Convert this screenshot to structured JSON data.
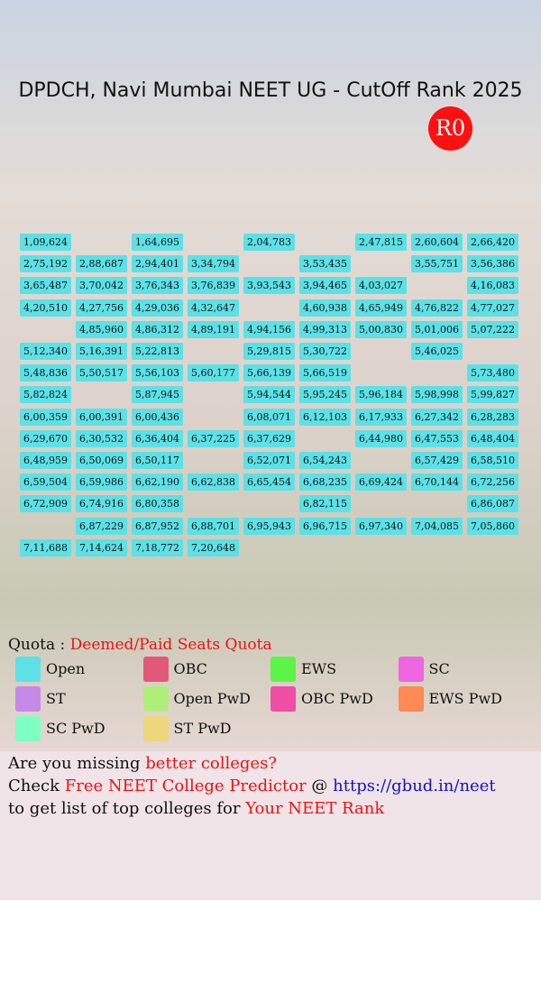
{
  "header": {
    "title": "DPDCH, Navi Mumbai NEET UG - CutOff Rank 2025",
    "round": "R0"
  },
  "grid": {
    "rows": [
      [
        "1,09,624",
        null,
        "1,64,695",
        null,
        "2,04,783",
        null,
        "2,47,815",
        "2,60,604",
        "2,66,420"
      ],
      [
        "2,75,192",
        "2,88,687",
        "2,94,401",
        "3,34,794",
        null,
        "3,53,435",
        null,
        "3,55,751",
        "3,56,386"
      ],
      [
        "3,65,487",
        "3,70,042",
        "3,76,343",
        "3,76,839",
        "3,93,543",
        "3,94,465",
        "4,03,027",
        null,
        "4,16,083"
      ],
      [
        "4,20,510",
        "4,27,756",
        "4,29,036",
        "4,32,647",
        null,
        "4,60,938",
        "4,65,949",
        "4,76,822",
        "4,77,027"
      ],
      [
        null,
        "4,85,960",
        "4,86,312",
        "4,89,191",
        "4,94,156",
        "4,99,313",
        "5,00,830",
        "5,01,006",
        "5,07,222"
      ],
      [
        "5,12,340",
        "5,16,391",
        "5,22,813",
        null,
        "5,29,815",
        "5,30,722",
        null,
        "5,46,025",
        null
      ],
      [
        "5,48,836",
        "5,50,517",
        "5,56,103",
        "5,60,177",
        "5,66,139",
        "5,66,519",
        null,
        null,
        "5,73,480"
      ],
      [
        "5,82,824",
        null,
        "5,87,945",
        null,
        "5,94,544",
        "5,95,245",
        "5,96,184",
        "5,98,998",
        "5,99,827"
      ],
      [
        "6,00,359",
        "6,00,391",
        "6,00,436",
        null,
        "6,08,071",
        "6,12,103",
        "6,17,933",
        "6,27,342",
        "6,28,283"
      ],
      [
        "6,29,670",
        "6,30,532",
        "6,36,404",
        "6,37,225",
        "6,37,629",
        null,
        "6,44,980",
        "6,47,553",
        "6,48,404"
      ],
      [
        "6,48,959",
        "6,50,069",
        "6,50,117",
        null,
        "6,52,071",
        "6,54,243",
        null,
        "6,57,429",
        "6,58,510"
      ],
      [
        "6,59,504",
        "6,59,986",
        "6,62,190",
        "6,62,838",
        "6,65,454",
        "6,68,235",
        "6,69,424",
        "6,70,144",
        "6,72,256"
      ],
      [
        "6,72,909",
        "6,74,916",
        "6,80,358",
        null,
        null,
        "6,82,115",
        null,
        null,
        "6,86,087"
      ],
      [
        null,
        "6,87,229",
        "6,87,952",
        "6,88,701",
        "6,95,943",
        "6,96,715",
        "6,97,340",
        "7,04,085",
        "7,05,860"
      ],
      [
        "7,11,688",
        "7,14,624",
        "7,18,772",
        "7,20,648",
        null,
        null,
        null,
        null,
        null
      ]
    ],
    "color": "#5ce1e6"
  },
  "quota": {
    "label": "Quota :",
    "value": "Deemed/Paid Seats Quota"
  },
  "legend": [
    {
      "name": "Open",
      "color": "#5ce1e6"
    },
    {
      "name": "OBC",
      "color": "#e05a77"
    },
    {
      "name": "EWS",
      "color": "#5cf545"
    },
    {
      "name": "SC",
      "color": "#ee66e0"
    },
    {
      "name": "ST",
      "color": "#c58ae8"
    },
    {
      "name": "Open PwD",
      "color": "#b0ee7a"
    },
    {
      "name": "OBC PwD",
      "color": "#ee4ea6"
    },
    {
      "name": "EWS PwD",
      "color": "#ff8a55"
    },
    {
      "name": "SC PwD",
      "color": "#7dffc4"
    },
    {
      "name": "ST PwD",
      "color": "#ecd77a"
    }
  ],
  "footer": {
    "lines": [
      [
        {
          "text": "Are you missing ",
          "color": "#111111"
        },
        {
          "text": "better colleges?",
          "color": "#ee1111"
        }
      ],
      [
        {
          "text": "Check ",
          "color": "#111111"
        },
        {
          "text": "Free NEET College Predictor",
          "color": "#ee1111"
        },
        {
          "text": " @ ",
          "color": "#111111"
        },
        {
          "text": "https://gbud.in/neet",
          "color": "#1111cc"
        }
      ],
      [
        {
          "text": "to get list of top colleges for ",
          "color": "#111111"
        },
        {
          "text": "Your NEET Rank",
          "color": "#ee1111"
        }
      ]
    ]
  }
}
